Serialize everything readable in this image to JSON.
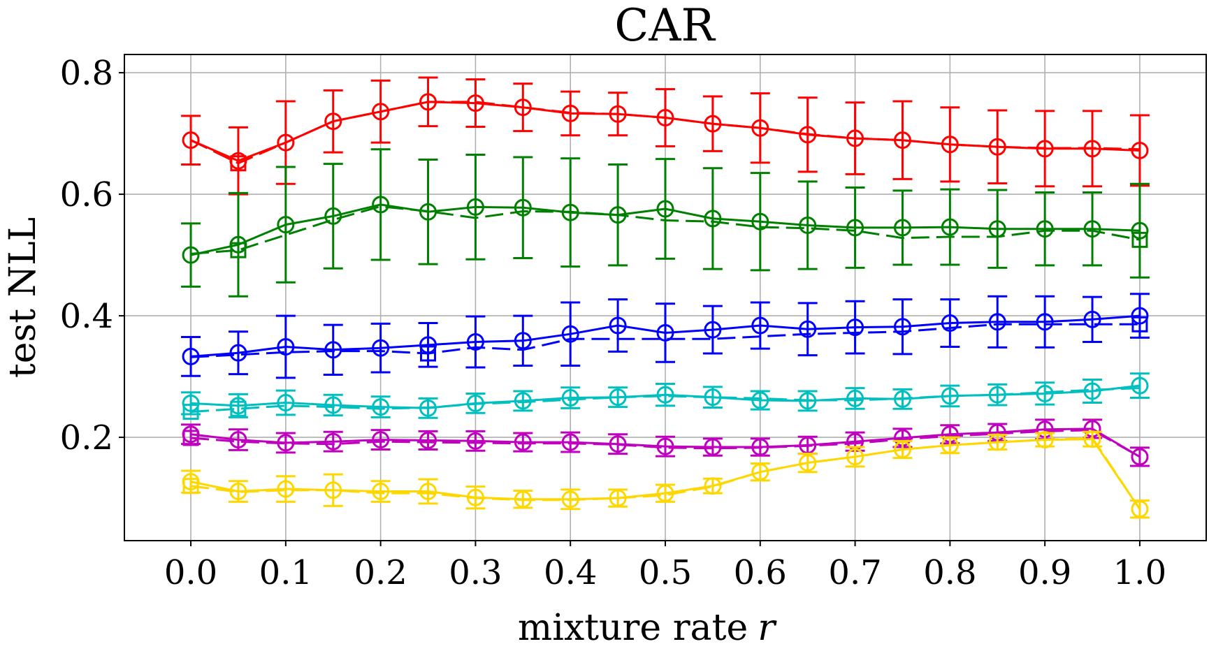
{
  "chart_data": {
    "type": "line",
    "title": "CAR",
    "xlabel": "mixture rate",
    "xlabel_var": "r",
    "ylabel": "test NLL",
    "xlim": [
      -0.07,
      1.07
    ],
    "ylim": [
      0.03,
      0.83
    ],
    "xticks": [
      0.0,
      0.1,
      0.2,
      0.3,
      0.4,
      0.5,
      0.6,
      0.7,
      0.8,
      0.9,
      1.0
    ],
    "xtick_labels": [
      "0.0",
      "0.1",
      "0.2",
      "0.3",
      "0.4",
      "0.5",
      "0.6",
      "0.7",
      "0.8",
      "0.9",
      "1.0"
    ],
    "yticks": [
      0.2,
      0.4,
      0.6,
      0.8
    ],
    "ytick_labels": [
      "0.2",
      "0.4",
      "0.6",
      "0.8"
    ],
    "grid": true,
    "x": [
      0.0,
      0.05,
      0.1,
      0.15,
      0.2,
      0.25,
      0.3,
      0.35,
      0.4,
      0.45,
      0.5,
      0.55,
      0.6,
      0.65,
      0.7,
      0.75,
      0.8,
      0.85,
      0.9,
      0.95,
      1.0
    ],
    "series": [
      {
        "name": "red",
        "color": "#ff0000",
        "circle": [
          0.689,
          0.655,
          0.685,
          0.72,
          0.736,
          0.752,
          0.75,
          0.743,
          0.733,
          0.732,
          0.726,
          0.716,
          0.709,
          0.698,
          0.692,
          0.689,
          0.682,
          0.678,
          0.675,
          0.675,
          0.672
        ],
        "circle_err": [
          0.04,
          0.055,
          0.068,
          0.051,
          0.051,
          0.04,
          0.039,
          0.039,
          0.036,
          0.035,
          0.047,
          0.045,
          0.057,
          0.061,
          0.059,
          0.064,
          0.061,
          0.06,
          0.062,
          0.062,
          0.058
        ],
        "square": [
          0.689,
          0.651,
          0.685,
          0.72,
          0.736,
          0.752,
          0.752,
          0.743,
          0.734,
          0.732,
          0.726,
          0.716,
          0.709,
          0.699,
          0.692,
          0.689,
          0.682,
          0.678,
          0.676,
          0.676,
          0.674
        ]
      },
      {
        "name": "green",
        "color": "#008000",
        "circle": [
          0.5,
          0.517,
          0.55,
          0.564,
          0.583,
          0.571,
          0.579,
          0.578,
          0.57,
          0.566,
          0.576,
          0.56,
          0.555,
          0.549,
          0.545,
          0.545,
          0.546,
          0.543,
          0.543,
          0.543,
          0.54
        ],
        "circle_err": [
          0.052,
          0.085,
          0.095,
          0.086,
          0.091,
          0.086,
          0.086,
          0.083,
          0.089,
          0.083,
          0.082,
          0.083,
          0.08,
          0.072,
          0.066,
          0.061,
          0.062,
          0.064,
          0.06,
          0.06,
          0.077
        ],
        "square": [
          0.502,
          0.508,
          0.533,
          0.558,
          0.58,
          0.572,
          0.561,
          0.572,
          0.571,
          0.566,
          0.557,
          0.555,
          0.546,
          0.544,
          0.54,
          0.528,
          0.53,
          0.53,
          0.54,
          0.54,
          0.525
        ]
      },
      {
        "name": "blue",
        "color": "#0000ff",
        "circle": [
          0.333,
          0.339,
          0.349,
          0.344,
          0.347,
          0.352,
          0.357,
          0.359,
          0.37,
          0.384,
          0.372,
          0.377,
          0.384,
          0.378,
          0.381,
          0.382,
          0.388,
          0.39,
          0.39,
          0.394,
          0.4
        ],
        "circle_err": [
          0.032,
          0.035,
          0.051,
          0.041,
          0.04,
          0.036,
          0.042,
          0.041,
          0.052,
          0.043,
          0.048,
          0.039,
          0.038,
          0.043,
          0.043,
          0.045,
          0.039,
          0.042,
          0.042,
          0.037,
          0.036
        ],
        "square": [
          0.332,
          0.336,
          0.34,
          0.342,
          0.342,
          0.338,
          0.348,
          0.344,
          0.362,
          0.362,
          0.362,
          0.362,
          0.366,
          0.37,
          0.372,
          0.374,
          0.38,
          0.386,
          0.386,
          0.386,
          0.386
        ]
      },
      {
        "name": "cyan",
        "color": "#00bfbf",
        "circle": [
          0.256,
          0.252,
          0.257,
          0.253,
          0.25,
          0.248,
          0.256,
          0.26,
          0.265,
          0.266,
          0.27,
          0.266,
          0.261,
          0.26,
          0.264,
          0.263,
          0.268,
          0.27,
          0.272,
          0.276,
          0.285
        ],
        "circle_err": [
          0.018,
          0.019,
          0.02,
          0.017,
          0.017,
          0.016,
          0.016,
          0.016,
          0.017,
          0.016,
          0.018,
          0.017,
          0.015,
          0.016,
          0.017,
          0.016,
          0.017,
          0.017,
          0.018,
          0.019,
          0.02
        ],
        "square": [
          0.242,
          0.247,
          0.252,
          0.25,
          0.247,
          0.249,
          0.255,
          0.258,
          0.262,
          0.266,
          0.268,
          0.266,
          0.264,
          0.261,
          0.261,
          0.264,
          0.268,
          0.27,
          0.274,
          0.278,
          0.281
        ]
      },
      {
        "name": "magenta",
        "color": "#bf00bf",
        "circle": [
          0.205,
          0.196,
          0.191,
          0.193,
          0.196,
          0.195,
          0.194,
          0.192,
          0.192,
          0.189,
          0.185,
          0.184,
          0.184,
          0.187,
          0.193,
          0.199,
          0.205,
          0.208,
          0.213,
          0.214,
          0.168
        ],
        "circle_err": [
          0.016,
          0.017,
          0.016,
          0.016,
          0.016,
          0.015,
          0.016,
          0.015,
          0.016,
          0.016,
          0.016,
          0.014,
          0.014,
          0.014,
          0.015,
          0.015,
          0.015,
          0.014,
          0.016,
          0.015,
          0.015
        ],
        "square": [
          0.199,
          0.193,
          0.19,
          0.189,
          0.193,
          0.192,
          0.191,
          0.19,
          0.19,
          0.188,
          0.183,
          0.182,
          0.183,
          0.186,
          0.19,
          0.197,
          0.202,
          0.206,
          0.21,
          0.212,
          0.168
        ]
      },
      {
        "name": "gold",
        "color": "#ffd700",
        "circle": [
          0.127,
          0.111,
          0.115,
          0.113,
          0.111,
          0.111,
          0.101,
          0.098,
          0.098,
          0.1,
          0.108,
          0.12,
          0.143,
          0.158,
          0.168,
          0.18,
          0.187,
          0.192,
          0.196,
          0.197,
          0.082
        ],
        "circle_err": [
          0.018,
          0.017,
          0.021,
          0.026,
          0.017,
          0.02,
          0.018,
          0.014,
          0.016,
          0.014,
          0.014,
          0.012,
          0.014,
          0.015,
          0.016,
          0.014,
          0.013,
          0.012,
          0.011,
          0.012,
          0.014
        ],
        "square": [
          0.12,
          0.11,
          0.113,
          0.113,
          0.108,
          0.108,
          0.1,
          0.097,
          0.097,
          0.1,
          0.105,
          0.119,
          0.143,
          0.158,
          0.168,
          0.18,
          0.187,
          0.192,
          0.196,
          0.199,
          0.082
        ]
      }
    ]
  }
}
